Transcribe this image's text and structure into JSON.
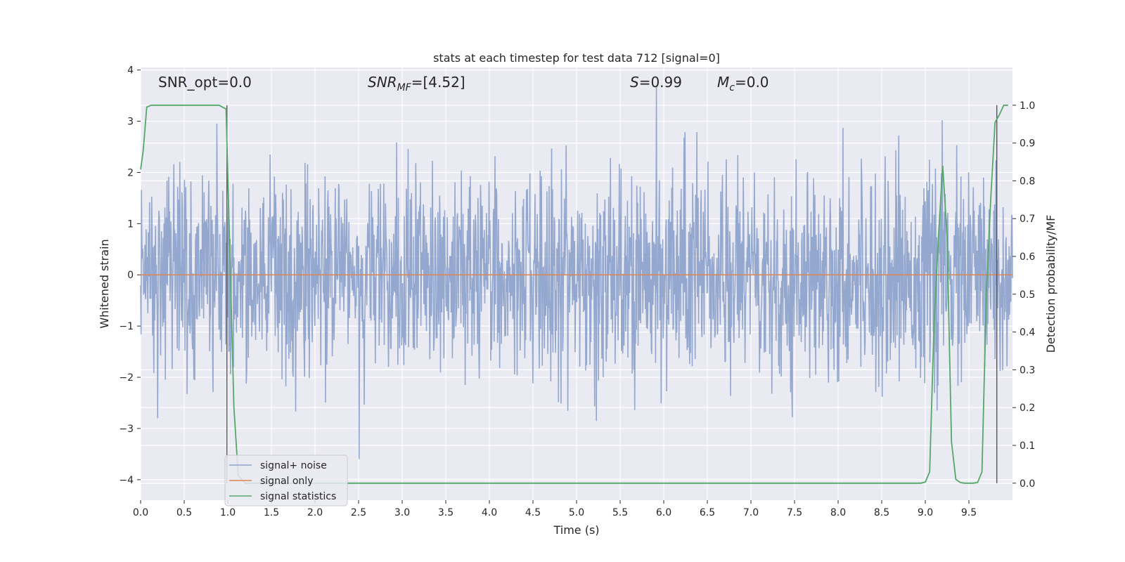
{
  "chart_data": {
    "type": "line",
    "title": "stats at each timestep for test data 712 [signal=0]",
    "xlabel": "Time (s)",
    "ylabel_left": "Whitened strain",
    "ylabel_right": "Detection probability/MF",
    "xlim": [
      0.0,
      10.0
    ],
    "ylim_left": [
      -4.4,
      4.05
    ],
    "ylim_right": [
      -0.045,
      1.1
    ],
    "x_ticks": [
      0.0,
      0.5,
      1.0,
      1.5,
      2.0,
      2.5,
      3.0,
      3.5,
      4.0,
      4.5,
      5.0,
      5.5,
      6.0,
      6.5,
      7.0,
      7.5,
      8.0,
      8.5,
      9.0,
      9.5
    ],
    "x_tick_labels": [
      "0.0",
      "0.5",
      "1.0",
      "1.5",
      "2.0",
      "2.5",
      "3.0",
      "3.5",
      "4.0",
      "4.5",
      "5.0",
      "5.5",
      "6.0",
      "6.5",
      "7.0",
      "7.5",
      "8.0",
      "8.5",
      "9.0",
      "9.5"
    ],
    "y_ticks_left": [
      4,
      3,
      2,
      1,
      0,
      -1,
      -2,
      -3,
      -4
    ],
    "y_tick_labels_left": [
      "4",
      "3",
      "2",
      "1",
      "0",
      "−1",
      "−2",
      "−3",
      "−4"
    ],
    "y_ticks_right": [
      1.0,
      0.9,
      0.8,
      0.7,
      0.6,
      0.5,
      0.4,
      0.3,
      0.2,
      0.1,
      0.0
    ],
    "y_tick_labels_right": [
      "1.0",
      "0.9",
      "0.8",
      "0.7",
      "0.6",
      "0.5",
      "0.4",
      "0.3",
      "0.2",
      "0.1",
      "0.0"
    ],
    "grid": true,
    "legend": {
      "placement": "lower-left",
      "entries": [
        {
          "label": "signal+ noise",
          "color": "#8fa4cc"
        },
        {
          "label": "signal only",
          "color": "#dd8452"
        },
        {
          "label": "signal statistics",
          "color": "#55a868"
        }
      ]
    },
    "annotations": [
      {
        "text_plain": "SNR_opt=0.0"
      },
      {
        "italic": "SNR",
        "sub": "MF",
        "rest": "=[4.52]"
      },
      {
        "italic": "S",
        "rest": "=0.99"
      },
      {
        "italic": "M",
        "sub": "c",
        "rest": "=0.0"
      }
    ],
    "series": [
      {
        "name": "signal+ noise",
        "axis": "left",
        "color": "#8fa4cc",
        "x_range": [
          0.0,
          10.0
        ],
        "n_samples": 2048,
        "amplitude_std": 1.0,
        "max": 3.7,
        "min": -3.6
      },
      {
        "name": "signal only",
        "axis": "left",
        "color": "#dd8452",
        "x": [
          0.0,
          10.0
        ],
        "y": [
          0.0,
          0.0
        ]
      },
      {
        "name": "signal statistics",
        "axis": "right",
        "color": "#55a868",
        "x": [
          0.0,
          0.03,
          0.07,
          0.12,
          0.5,
          0.9,
          0.98,
          1.03,
          1.07,
          1.12,
          1.2,
          1.3,
          2.0,
          5.0,
          8.0,
          8.9,
          8.95,
          9.0,
          9.05,
          9.1,
          9.15,
          9.2,
          9.25,
          9.3,
          9.35,
          9.4,
          9.45,
          9.5,
          9.55,
          9.6,
          9.65,
          9.7,
          9.75,
          9.8,
          9.85,
          9.9,
          9.95
        ],
        "y": [
          0.83,
          0.88,
          0.995,
          1.0,
          1.0,
          1.0,
          0.99,
          0.55,
          0.2,
          0.02,
          0.0,
          0.0,
          0.0,
          0.0,
          0.0,
          0.0,
          0.0,
          0.003,
          0.03,
          0.42,
          0.65,
          0.84,
          0.65,
          0.11,
          0.01,
          0.002,
          0.0,
          0.0,
          0.0,
          0.002,
          0.03,
          0.5,
          0.75,
          0.955,
          0.975,
          1.0,
          1.0
        ]
      }
    ],
    "vertical_lines": [
      {
        "x": 0.99,
        "y_range_right": [
          0.0,
          1.0
        ],
        "color": "#555555"
      },
      {
        "x": 9.82,
        "y_range_right": [
          0.0,
          1.0
        ],
        "color": "#555555"
      }
    ]
  }
}
